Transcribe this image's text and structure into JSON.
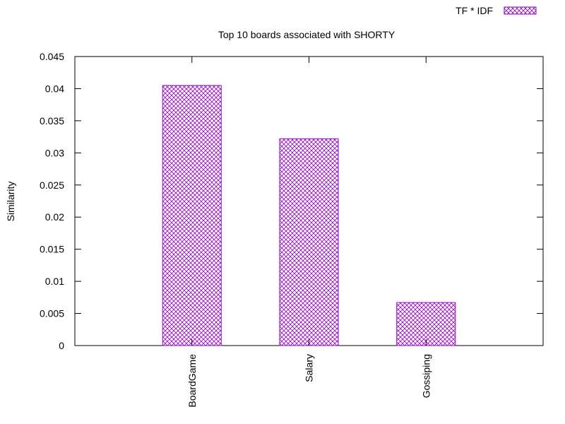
{
  "chart_data": {
    "type": "bar",
    "title": "Top 10 boards associated with SHORTY",
    "xlabel": "",
    "ylabel": "Similarity",
    "categories": [
      "BoardGame",
      "Salary",
      "Gossiping"
    ],
    "series": [
      {
        "name": "TF * IDF",
        "values": [
          0.0405,
          0.0322,
          0.0067
        ],
        "color": "#9400d3"
      }
    ],
    "ylim": [
      0,
      0.045
    ],
    "yticks": [
      "0",
      "0.005",
      "0.01",
      "0.015",
      "0.02",
      "0.025",
      "0.03",
      "0.035",
      "0.04",
      "0.045"
    ],
    "legend": "top-right",
    "grid": false,
    "bar_fill": "cross-hatch"
  }
}
